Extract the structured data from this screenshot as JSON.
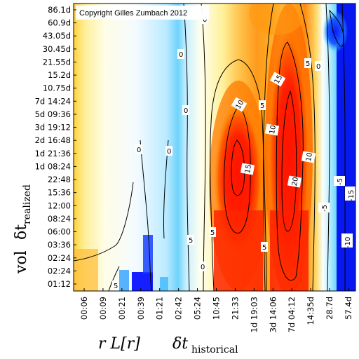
{
  "chart_data": {
    "type": "heatmap",
    "title": "",
    "copyright": "Copyright Gilles Zumbach 2012",
    "x_label": {
      "main": "r L[r]",
      "delta": "δt",
      "sub": "historical"
    },
    "y_label": {
      "main": "vol",
      "delta": "δt",
      "sub": "realized"
    },
    "x_ticks": [
      "00:06",
      "00:09",
      "00:21",
      "00:39",
      "01:21",
      "02:42",
      "05:24",
      "10:45",
      "21:33",
      "1d 19:03",
      "3d 14:06",
      "7d 04:12",
      "14:35d",
      "28.7d",
      "57.4d"
    ],
    "y_ticks": [
      "86.1d",
      "60.9d",
      "43.05d",
      "30.45d",
      "21.55d",
      "15.2d",
      "10.75d",
      "7d 14:24",
      "5d 09:36",
      "3d 19:12",
      "2d 16:48",
      "1d 21:36",
      "1d 08:24",
      "22:48",
      "15:36",
      "12:00",
      "08:24",
      "06:00",
      "03:36",
      "02:24",
      "02:24",
      "01:12"
    ],
    "contour_labels": [
      "-10",
      "-5",
      "0",
      "5",
      "10",
      "15",
      "20"
    ],
    "color_scale": {
      "low": "#0018ff",
      "mid_low": "#33ccff",
      "zero": "#ffffe0",
      "mid_high": "#ffb000",
      "high": "#ff1400"
    },
    "x_profile": [
      {
        "x": "00:06",
        "value": 0.5
      },
      {
        "x": "00:09",
        "value": 0
      },
      {
        "x": "00:21",
        "value": -1
      },
      {
        "x": "00:39",
        "value": -4
      },
      {
        "x": "01:21",
        "value": -2
      },
      {
        "x": "02:42",
        "value": -1
      },
      {
        "x": "05:24",
        "value": 3
      },
      {
        "x": "10:45",
        "value": 10
      },
      {
        "x": "21:33",
        "value": 16
      },
      {
        "x": "1d 19:03",
        "value": 6
      },
      {
        "x": "3d 14:06",
        "value": 12
      },
      {
        "x": "7d 04:12",
        "value": 21
      },
      {
        "x": "14:35d",
        "value": 1
      },
      {
        "x": "28.7d",
        "value": -5
      },
      {
        "x": "57.4d",
        "value": -12
      }
    ]
  }
}
